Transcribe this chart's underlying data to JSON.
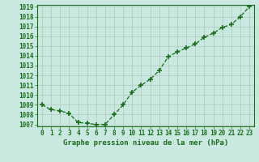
{
  "x": [
    0,
    1,
    2,
    3,
    4,
    5,
    6,
    7,
    8,
    9,
    10,
    11,
    12,
    13,
    14,
    15,
    16,
    17,
    18,
    19,
    20,
    21,
    22,
    23
  ],
  "y": [
    1009.0,
    1008.5,
    1008.4,
    1008.1,
    1007.2,
    1007.1,
    1007.0,
    1007.0,
    1008.0,
    1009.0,
    1010.3,
    1011.0,
    1011.6,
    1012.5,
    1013.9,
    1014.4,
    1014.8,
    1015.2,
    1015.9,
    1016.3,
    1016.9,
    1017.2,
    1018.0,
    1019.0
  ],
  "line_color": "#1a6e1a",
  "marker_color": "#1a6e1a",
  "bg_color": "#c8e8e0",
  "grid_color": "#b0c8c0",
  "xlabel": "Graphe pression niveau de la mer (hPa)",
  "xlabel_color": "#1a6e1a",
  "tick_color": "#1a6e1a",
  "ylim": [
    1007,
    1019
  ],
  "xlim": [
    -0.5,
    23.5
  ],
  "yticks": [
    1007,
    1008,
    1009,
    1010,
    1011,
    1012,
    1013,
    1014,
    1015,
    1016,
    1017,
    1018,
    1019
  ],
  "xticks": [
    0,
    1,
    2,
    3,
    4,
    5,
    6,
    7,
    8,
    9,
    10,
    11,
    12,
    13,
    14,
    15,
    16,
    17,
    18,
    19,
    20,
    21,
    22,
    23
  ],
  "tick_fontsize": 5.5,
  "xlabel_fontsize": 6.5,
  "marker": "+",
  "markersize": 4,
  "linewidth": 0.9,
  "linestyle": "--"
}
